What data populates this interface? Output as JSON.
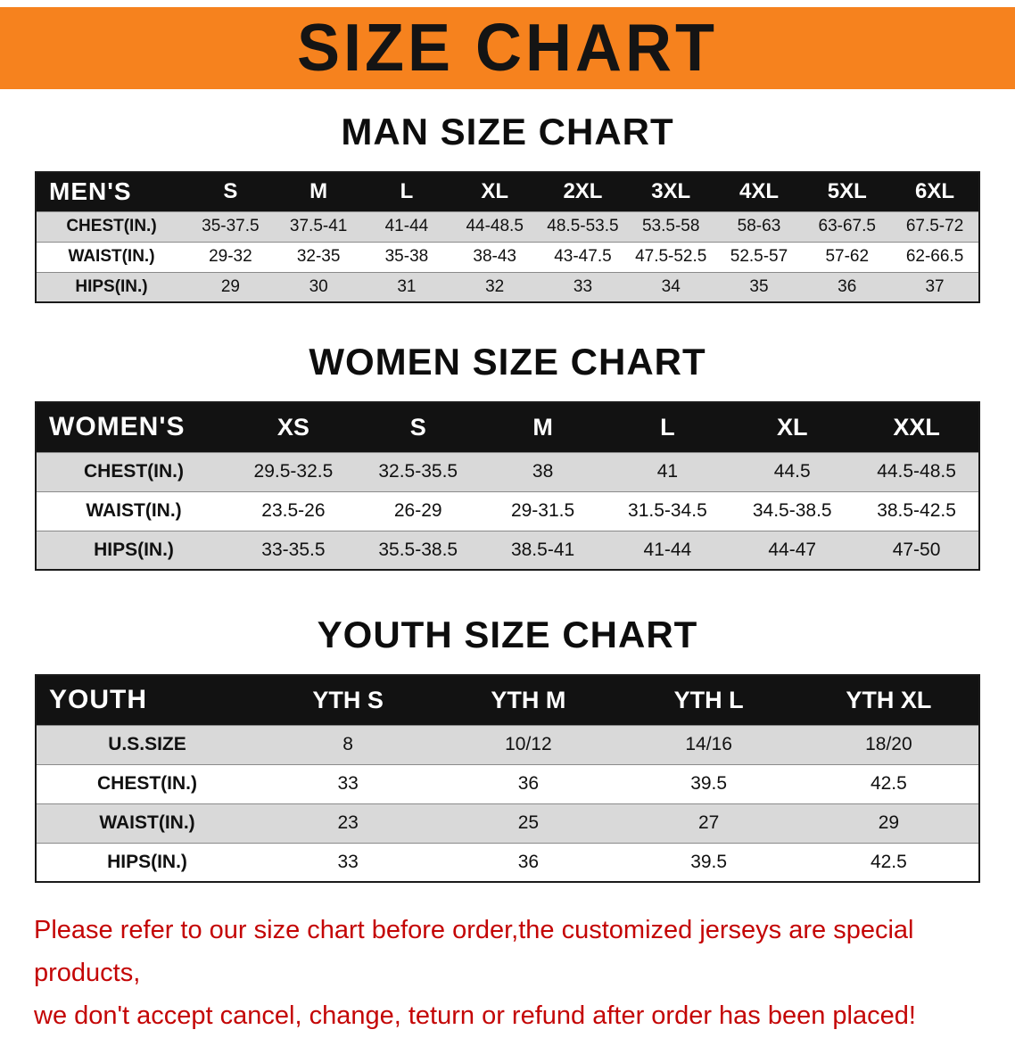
{
  "page": {
    "banner_title": "SIZE CHART",
    "colors": {
      "banner_bg": "#F6821E",
      "header_bg": "#121212",
      "stripe_gray": "#D9D9D9",
      "note_red": "#C40505"
    }
  },
  "sections": [
    {
      "heading": "MAN SIZE CHART",
      "table": {
        "corner": "MEN'S",
        "columns": [
          "S",
          "M",
          "L",
          "XL",
          "2XL",
          "3XL",
          "4XL",
          "5XL",
          "6XL"
        ],
        "rows": [
          {
            "label": "CHEST(IN.)",
            "values": [
              "35-37.5",
              "37.5-41",
              "41-44",
              "44-48.5",
              "48.5-53.5",
              "53.5-58",
              "58-63",
              "63-67.5",
              "67.5-72"
            ]
          },
          {
            "label": "WAIST(IN.)",
            "values": [
              "29-32",
              "32-35",
              "35-38",
              "38-43",
              "43-47.5",
              "47.5-52.5",
              "52.5-57",
              "57-62",
              "62-66.5"
            ]
          },
          {
            "label": "HIPS(IN.)",
            "values": [
              "29",
              "30",
              "31",
              "32",
              "33",
              "34",
              "35",
              "36",
              "37"
            ]
          }
        ]
      }
    },
    {
      "heading": "WOMEN SIZE CHART",
      "table": {
        "corner": "WOMEN'S",
        "columns": [
          "XS",
          "S",
          "M",
          "L",
          "XL",
          "XXL"
        ],
        "rows": [
          {
            "label": "CHEST(IN.)",
            "values": [
              "29.5-32.5",
              "32.5-35.5",
              "38",
              "41",
              "44.5",
              "44.5-48.5"
            ]
          },
          {
            "label": "WAIST(IN.)",
            "values": [
              "23.5-26",
              "26-29",
              "29-31.5",
              "31.5-34.5",
              "34.5-38.5",
              "38.5-42.5"
            ]
          },
          {
            "label": "HIPS(IN.)",
            "values": [
              "33-35.5",
              "35.5-38.5",
              "38.5-41",
              "41-44",
              "44-47",
              "47-50"
            ]
          }
        ]
      }
    },
    {
      "heading": "YOUTH SIZE CHART",
      "table": {
        "corner": "YOUTH",
        "columns": [
          "YTH S",
          "YTH M",
          "YTH L",
          "YTH XL"
        ],
        "rows": [
          {
            "label": "U.S.SIZE",
            "values": [
              "8",
              "10/12",
              "14/16",
              "18/20"
            ]
          },
          {
            "label": "CHEST(IN.)",
            "values": [
              "33",
              "36",
              "39.5",
              "42.5"
            ]
          },
          {
            "label": "WAIST(IN.)",
            "values": [
              "23",
              "25",
              "27",
              "29"
            ]
          },
          {
            "label": "HIPS(IN.)",
            "values": [
              "33",
              "36",
              "39.5",
              "42.5"
            ]
          }
        ]
      }
    }
  ],
  "note": {
    "line1": "Please refer to our size chart before order,the customized jerseys are special products,",
    "line2": "we don't accept cancel, change, teturn or refund after order has been placed!"
  }
}
